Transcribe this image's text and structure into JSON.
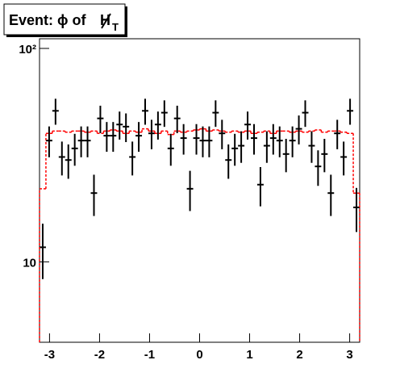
{
  "chart_data": {
    "type": "histogram",
    "title": "Event: ϕ of",
    "title_symbol": "H",
    "title_subscript": "T",
    "bins": [
      -3.2,
      -3.072,
      -2.944,
      -2.816,
      -2.688,
      -2.56,
      -2.432,
      -2.304,
      -2.176,
      -2.048,
      -1.92,
      -1.792,
      -1.664,
      -1.536,
      -1.408,
      -1.28,
      -1.152,
      -1.024,
      -0.896,
      -0.768,
      -0.64,
      -0.512,
      -0.384,
      -0.256,
      -0.128,
      0,
      0.128,
      0.256,
      0.384,
      0.512,
      0.64,
      0.768,
      0.896,
      1.024,
      1.152,
      1.28,
      1.408,
      1.536,
      1.664,
      1.792,
      1.92,
      2.048,
      2.176,
      2.304,
      2.432,
      2.56,
      2.688,
      2.816,
      2.944,
      3.072,
      3.2
    ],
    "series": [
      {
        "name": "data",
        "color": "#000000",
        "style": "points",
        "values": [
          11.7,
          37,
          51,
          31,
          30,
          34,
          37,
          37,
          21,
          47,
          39,
          39,
          44,
          43,
          31,
          39,
          51,
          40,
          44,
          50,
          34,
          47,
          38,
          22,
          38,
          37,
          37,
          50,
          40,
          30,
          34,
          35,
          44,
          38,
          23,
          35,
          38,
          37,
          32,
          37,
          42,
          50,
          35,
          28,
          32,
          21,
          40,
          31,
          51,
          18
        ],
        "errors": [
          3.4,
          6.1,
          7.1,
          5.6,
          5.5,
          5.8,
          6.1,
          6.1,
          4.6,
          6.9,
          6.2,
          6.2,
          6.6,
          6.6,
          5.6,
          6.2,
          7.1,
          6.3,
          6.6,
          7.1,
          5.8,
          6.9,
          6.2,
          4.7,
          6.2,
          6.1,
          6.1,
          7.1,
          6.3,
          5.5,
          5.8,
          5.9,
          6.6,
          6.2,
          4.8,
          5.9,
          6.2,
          6.1,
          5.7,
          6.1,
          6.5,
          7.1,
          5.9,
          5.3,
          5.7,
          4.6,
          6.3,
          5.6,
          7.1,
          4.2
        ]
      },
      {
        "name": "prediction",
        "color": "#ff0000",
        "style": "step",
        "values": [
          22,
          40,
          41,
          41,
          40.5,
          41,
          41,
          40.5,
          41,
          40,
          41,
          41.5,
          41,
          40,
          41,
          40.5,
          42,
          41,
          40,
          41,
          39.5,
          41,
          40.5,
          41,
          41.5,
          42,
          41,
          41.5,
          41,
          40.5,
          41,
          40.5,
          41,
          40,
          40.5,
          41,
          40,
          41,
          41,
          40.5,
          41,
          40.5,
          41,
          41.5,
          40.5,
          41,
          41,
          40.5,
          40,
          21
        ]
      }
    ],
    "xlim": [
      -3.2,
      3.2
    ],
    "ylim": [
      4.2,
      111
    ],
    "log_y": true,
    "xticks": [
      -3,
      -2,
      -1,
      0,
      1,
      2,
      3
    ],
    "yticks": [
      10,
      {
        "value": 100,
        "label": "10²"
      }
    ]
  }
}
